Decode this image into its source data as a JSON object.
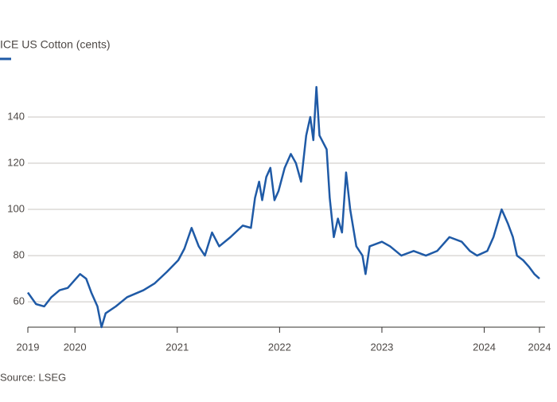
{
  "chart_data": {
    "type": "line",
    "source": "Source: LSEG",
    "x": [
      2019.54,
      2019.62,
      2019.7,
      2019.77,
      2019.85,
      2019.93,
      2020.01,
      2020.05,
      2020.11,
      2020.16,
      2020.22,
      2020.26,
      2020.3,
      2020.4,
      2020.51,
      2020.67,
      2020.78,
      2020.9,
      2021.01,
      2021.07,
      2021.14,
      2021.21,
      2021.27,
      2021.34,
      2021.41,
      2021.52,
      2021.64,
      2021.72,
      2021.76,
      2021.8,
      2021.83,
      2021.87,
      2021.91,
      2021.95,
      2021.99,
      2022.05,
      2022.11,
      2022.16,
      2022.21,
      2022.26,
      2022.3,
      2022.33,
      2022.36,
      2022.39,
      2022.46,
      2022.49,
      2022.53,
      2022.57,
      2022.61,
      2022.65,
      2022.69,
      2022.75,
      2022.81,
      2022.84,
      2022.88,
      2023.0,
      2023.08,
      2023.19,
      2023.31,
      2023.43,
      2023.54,
      2023.66,
      2023.78,
      2023.86,
      2023.93,
      2024.03,
      2024.09,
      2024.17,
      2024.23,
      2024.28,
      2024.32,
      2024.38,
      2024.44,
      2024.49,
      2024.54
    ],
    "series": [
      {
        "name": "ICE US Cotton (cents)",
        "color": "#1f5aa6",
        "values": [
          64,
          59,
          58,
          62,
          65,
          66,
          70,
          72,
          70,
          64,
          58,
          49,
          55,
          58,
          62,
          65,
          68,
          73,
          78,
          83,
          92,
          84,
          80,
          90,
          84,
          88,
          93,
          92,
          105,
          112,
          104,
          114,
          118,
          104,
          108,
          118,
          124,
          120,
          112,
          132,
          140,
          130,
          153,
          132,
          126,
          105,
          88,
          96,
          90,
          116,
          100,
          84,
          80,
          72,
          84,
          86,
          84,
          80,
          82,
          80,
          82,
          88,
          86,
          82,
          80,
          82,
          88,
          100,
          94,
          88,
          80,
          78,
          75,
          72,
          70
        ]
      }
    ],
    "xlim": [
      2019.54,
      2024.54
    ],
    "xticks": [
      {
        "value": 2019.54,
        "label": "2019"
      },
      2020,
      2021,
      2022,
      2023,
      2024,
      {
        "value": 2024.54,
        "label": "2024"
      }
    ],
    "ylim": [
      49,
      160
    ],
    "yticks": [
      60,
      80,
      100,
      120,
      140
    ],
    "grid": true
  }
}
